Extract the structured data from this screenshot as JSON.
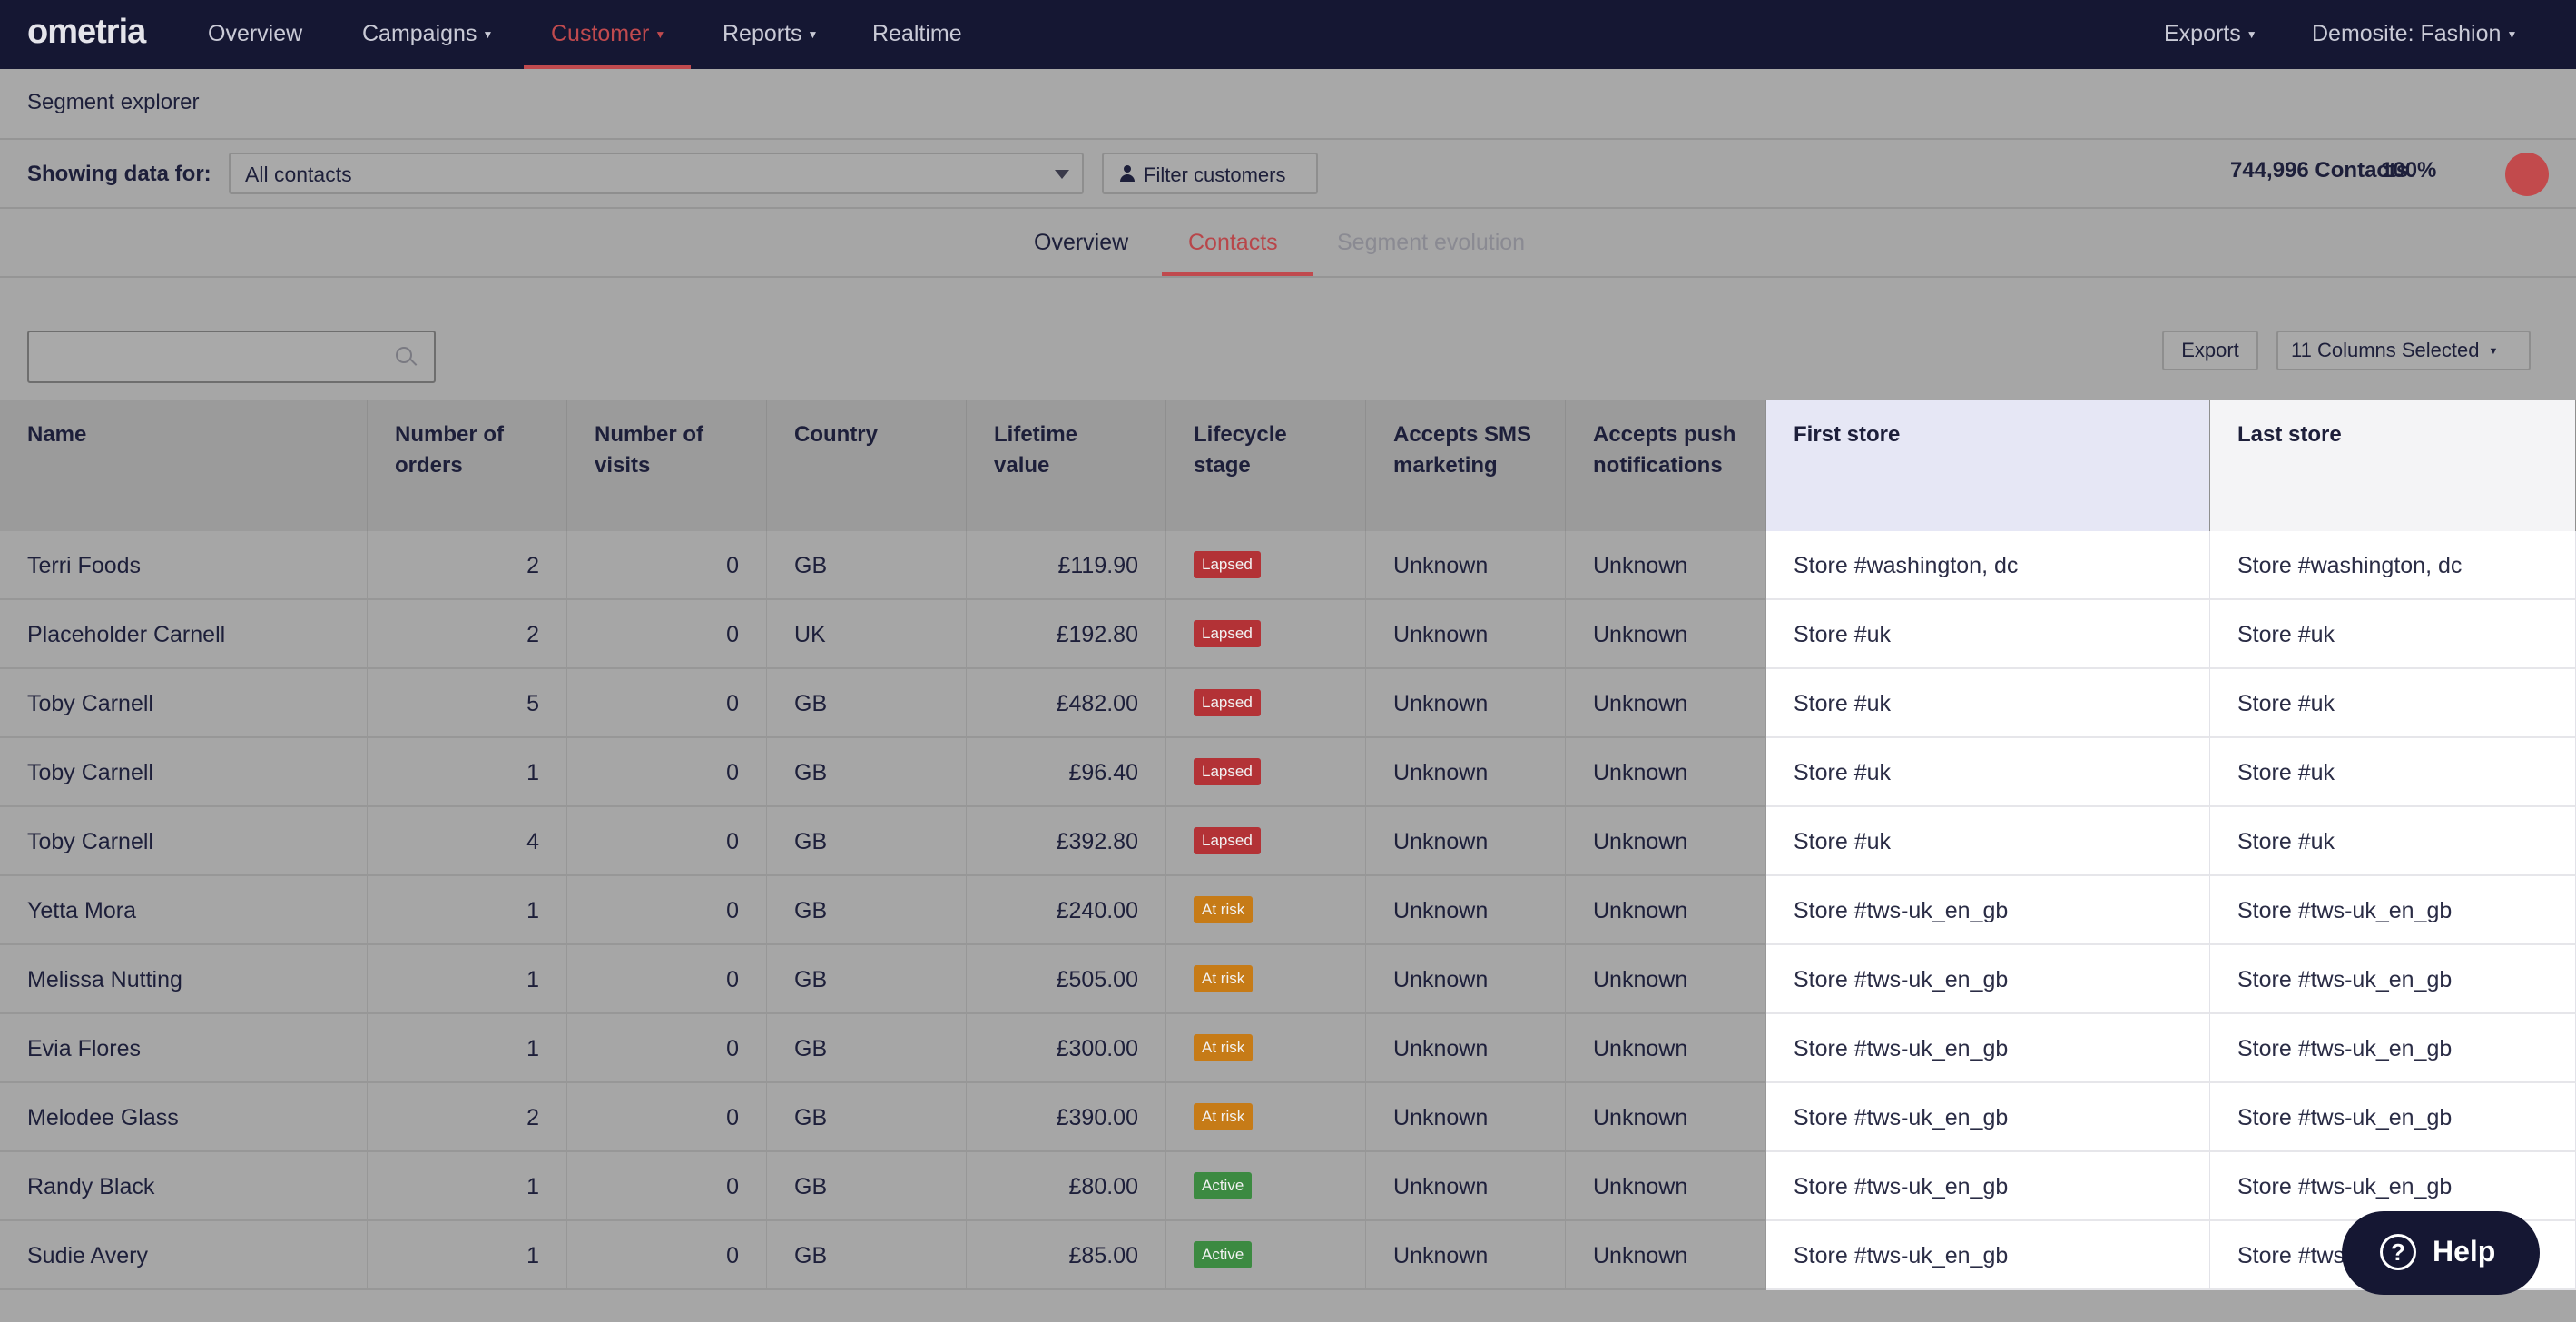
{
  "brand": {
    "logo_text": "ometria"
  },
  "nav": {
    "items": [
      {
        "label": "Overview",
        "dropdown": false
      },
      {
        "label": "Campaigns",
        "dropdown": true
      },
      {
        "label": "Customer",
        "dropdown": true,
        "active": true
      },
      {
        "label": "Reports",
        "dropdown": true
      },
      {
        "label": "Realtime",
        "dropdown": false
      }
    ],
    "right": [
      {
        "label": "Exports",
        "dropdown": true
      },
      {
        "label": "Demosite: Fashion",
        "dropdown": true
      }
    ]
  },
  "page": {
    "title": "Segment explorer"
  },
  "filter": {
    "showing_label": "Showing data for:",
    "selected_segment": "All contacts",
    "filter_button": "Filter customers",
    "contacts_count": "744,996 Contacts",
    "percent": "100%"
  },
  "tabs": [
    {
      "label": "Overview",
      "state": "normal"
    },
    {
      "label": "Contacts",
      "state": "active"
    },
    {
      "label": "Segment evolution",
      "state": "disabled"
    }
  ],
  "toolbar": {
    "search_value": "",
    "export_label": "Export",
    "columns_label": "11 Columns Selected"
  },
  "table": {
    "columns": [
      "Name",
      "Number of orders",
      "Number of visits",
      "Country",
      "Lifetime value",
      "Lifecycle stage",
      "Accepts SMS marketing",
      "Accepts push notifications",
      "First store",
      "Last store"
    ],
    "rows": [
      {
        "name": "Terri Foods",
        "orders": "2",
        "visits": "0",
        "country": "GB",
        "ltv": "£119.90",
        "stage": "Lapsed",
        "sms": "Unknown",
        "push": "Unknown",
        "first_store": "Store #washington, dc",
        "last_store": "Store #washington, dc"
      },
      {
        "name": "Placeholder Carnell",
        "orders": "2",
        "visits": "0",
        "country": "UK",
        "ltv": "£192.80",
        "stage": "Lapsed",
        "sms": "Unknown",
        "push": "Unknown",
        "first_store": "Store #uk",
        "last_store": "Store #uk"
      },
      {
        "name": "Toby Carnell",
        "orders": "5",
        "visits": "0",
        "country": "GB",
        "ltv": "£482.00",
        "stage": "Lapsed",
        "sms": "Unknown",
        "push": "Unknown",
        "first_store": "Store #uk",
        "last_store": "Store #uk"
      },
      {
        "name": "Toby Carnell",
        "orders": "1",
        "visits": "0",
        "country": "GB",
        "ltv": "£96.40",
        "stage": "Lapsed",
        "sms": "Unknown",
        "push": "Unknown",
        "first_store": "Store #uk",
        "last_store": "Store #uk"
      },
      {
        "name": "Toby Carnell",
        "orders": "4",
        "visits": "0",
        "country": "GB",
        "ltv": "£392.80",
        "stage": "Lapsed",
        "sms": "Unknown",
        "push": "Unknown",
        "first_store": "Store #uk",
        "last_store": "Store #uk"
      },
      {
        "name": "Yetta Mora",
        "orders": "1",
        "visits": "0",
        "country": "GB",
        "ltv": "£240.00",
        "stage": "At risk",
        "sms": "Unknown",
        "push": "Unknown",
        "first_store": "Store #tws-uk_en_gb",
        "last_store": "Store #tws-uk_en_gb"
      },
      {
        "name": "Melissa Nutting",
        "orders": "1",
        "visits": "0",
        "country": "GB",
        "ltv": "£505.00",
        "stage": "At risk",
        "sms": "Unknown",
        "push": "Unknown",
        "first_store": "Store #tws-uk_en_gb",
        "last_store": "Store #tws-uk_en_gb"
      },
      {
        "name": "Evia Flores",
        "orders": "1",
        "visits": "0",
        "country": "GB",
        "ltv": "£300.00",
        "stage": "At risk",
        "sms": "Unknown",
        "push": "Unknown",
        "first_store": "Store #tws-uk_en_gb",
        "last_store": "Store #tws-uk_en_gb"
      },
      {
        "name": "Melodee Glass",
        "orders": "2",
        "visits": "0",
        "country": "GB",
        "ltv": "£390.00",
        "stage": "At risk",
        "sms": "Unknown",
        "push": "Unknown",
        "first_store": "Store #tws-uk_en_gb",
        "last_store": "Store #tws-uk_en_gb"
      },
      {
        "name": "Randy Black",
        "orders": "1",
        "visits": "0",
        "country": "GB",
        "ltv": "£80.00",
        "stage": "Active",
        "sms": "Unknown",
        "push": "Unknown",
        "first_store": "Store #tws-uk_en_gb",
        "last_store": "Store #tws-uk_en_gb"
      },
      {
        "name": "Sudie Avery",
        "orders": "1",
        "visits": "0",
        "country": "GB",
        "ltv": "£85.00",
        "stage": "Active",
        "sms": "Unknown",
        "push": "Unknown",
        "first_store": "Store #tws-uk_en_gb",
        "last_store": "Store #tws"
      }
    ]
  },
  "help": {
    "label": "Help"
  },
  "colors": {
    "nav_bg": "#151733",
    "accent": "#c04a4e",
    "lapsed": "#b33236",
    "at_risk": "#c67b17",
    "active": "#3c8a41",
    "highlight_column": "#e6e7f5"
  }
}
